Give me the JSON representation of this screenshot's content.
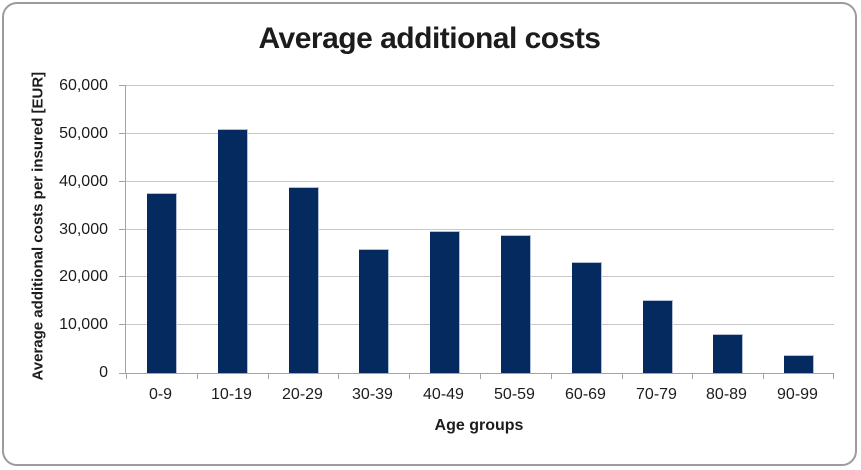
{
  "chart_data": {
    "type": "bar",
    "title": "Average additional costs",
    "xlabel": "Age groups",
    "ylabel": "Average additional costs per insured [EUR]",
    "categories": [
      "0-9",
      "10-19",
      "20-29",
      "30-39",
      "40-49",
      "50-59",
      "60-69",
      "70-79",
      "80-89",
      "90-99"
    ],
    "values": [
      37400,
      50800,
      38700,
      25800,
      29400,
      28700,
      23000,
      15100,
      7900,
      3500
    ],
    "ylim": [
      0,
      60000
    ],
    "yticks": [
      0,
      10000,
      20000,
      30000,
      40000,
      50000,
      60000
    ],
    "ytick_labels": [
      "0",
      "10,000",
      "20,000",
      "30,000",
      "40,000",
      "50,000",
      "60,000"
    ],
    "grid": true,
    "legend": false,
    "colors": {
      "bar_fill": "#042a60",
      "bar_edge": "#b3bfd2",
      "gridline": "#c8c8c8",
      "axis": "#a3a3a3",
      "text": "#1c1c1c",
      "frame_border": "#9c9c9c",
      "background": "#ffffff"
    }
  }
}
